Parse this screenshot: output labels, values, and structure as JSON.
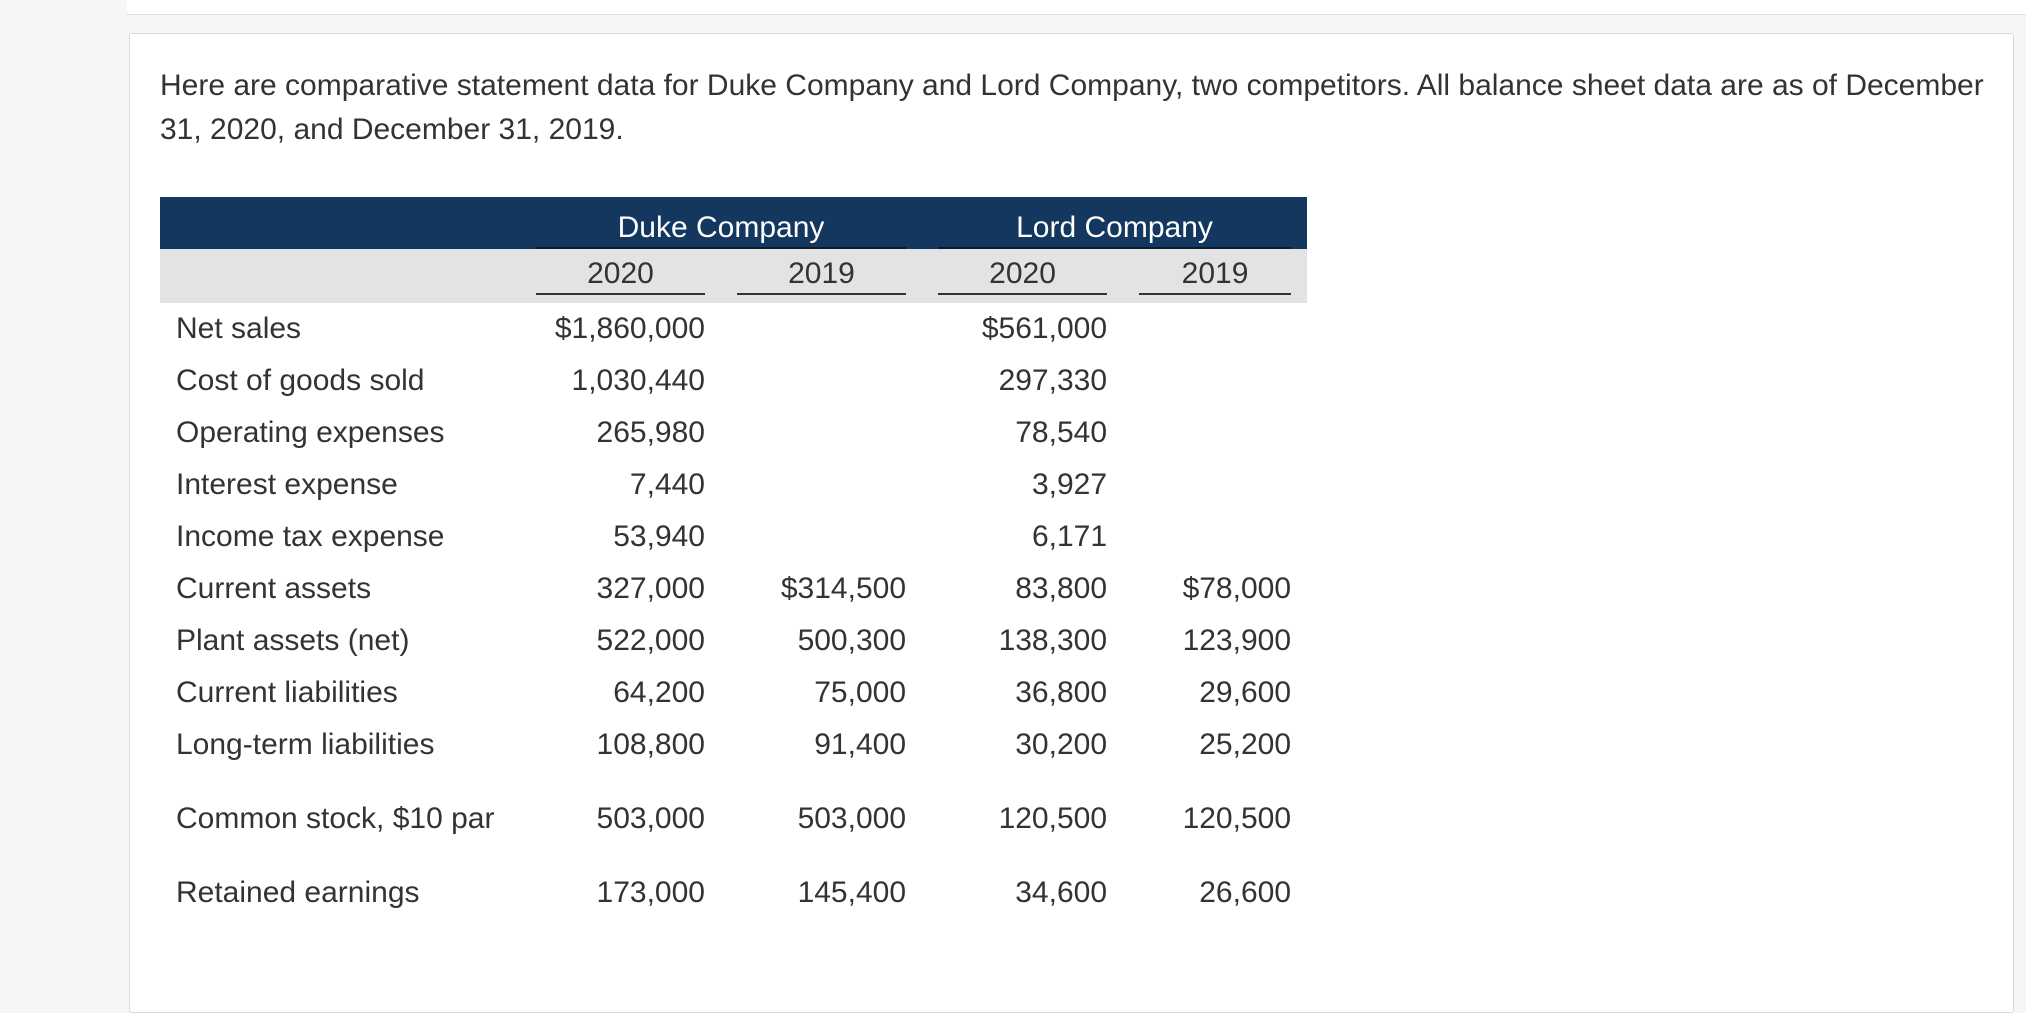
{
  "intro_text": "Here are comparative statement data for Duke Company and Lord Company, two competitors. All balance sheet data are as of December 31, 2020, and December 31, 2019.",
  "table": {
    "companies": [
      "Duke Company",
      "Lord Company"
    ],
    "years": [
      "2020",
      "2019",
      "2020",
      "2019"
    ],
    "rows": [
      {
        "label": "Net sales",
        "values": [
          "$1,860,000",
          "",
          "$561,000",
          ""
        ]
      },
      {
        "label": "Cost of goods sold",
        "values": [
          "1,030,440",
          "",
          "297,330",
          ""
        ]
      },
      {
        "label": "Operating expenses",
        "values": [
          "265,980",
          "",
          "78,540",
          ""
        ]
      },
      {
        "label": "Interest expense",
        "values": [
          "7,440",
          "",
          "3,927",
          ""
        ]
      },
      {
        "label": "Income tax expense",
        "values": [
          "53,940",
          "",
          "6,171",
          ""
        ]
      },
      {
        "label": "Current assets",
        "values": [
          "327,000",
          "$314,500",
          "83,800",
          "$78,000"
        ]
      },
      {
        "label": "Plant assets (net)",
        "values": [
          "522,000",
          "500,300",
          "138,300",
          "123,900"
        ]
      },
      {
        "label": "Current liabilities",
        "values": [
          "64,200",
          "75,000",
          "36,800",
          "29,600"
        ]
      },
      {
        "label": "Long-term liabilities",
        "values": [
          "108,800",
          "91,400",
          "30,200",
          "25,200"
        ]
      },
      {
        "label": "Common stock, $10 par",
        "values": [
          "503,000",
          "503,000",
          "120,500",
          "120,500"
        ]
      },
      {
        "label": "Retained earnings",
        "values": [
          "173,000",
          "145,400",
          "34,600",
          "26,600"
        ]
      }
    ]
  },
  "colors": {
    "header_dark": "#13375e",
    "header_light": "#e3e3e3",
    "text": "#333333"
  }
}
